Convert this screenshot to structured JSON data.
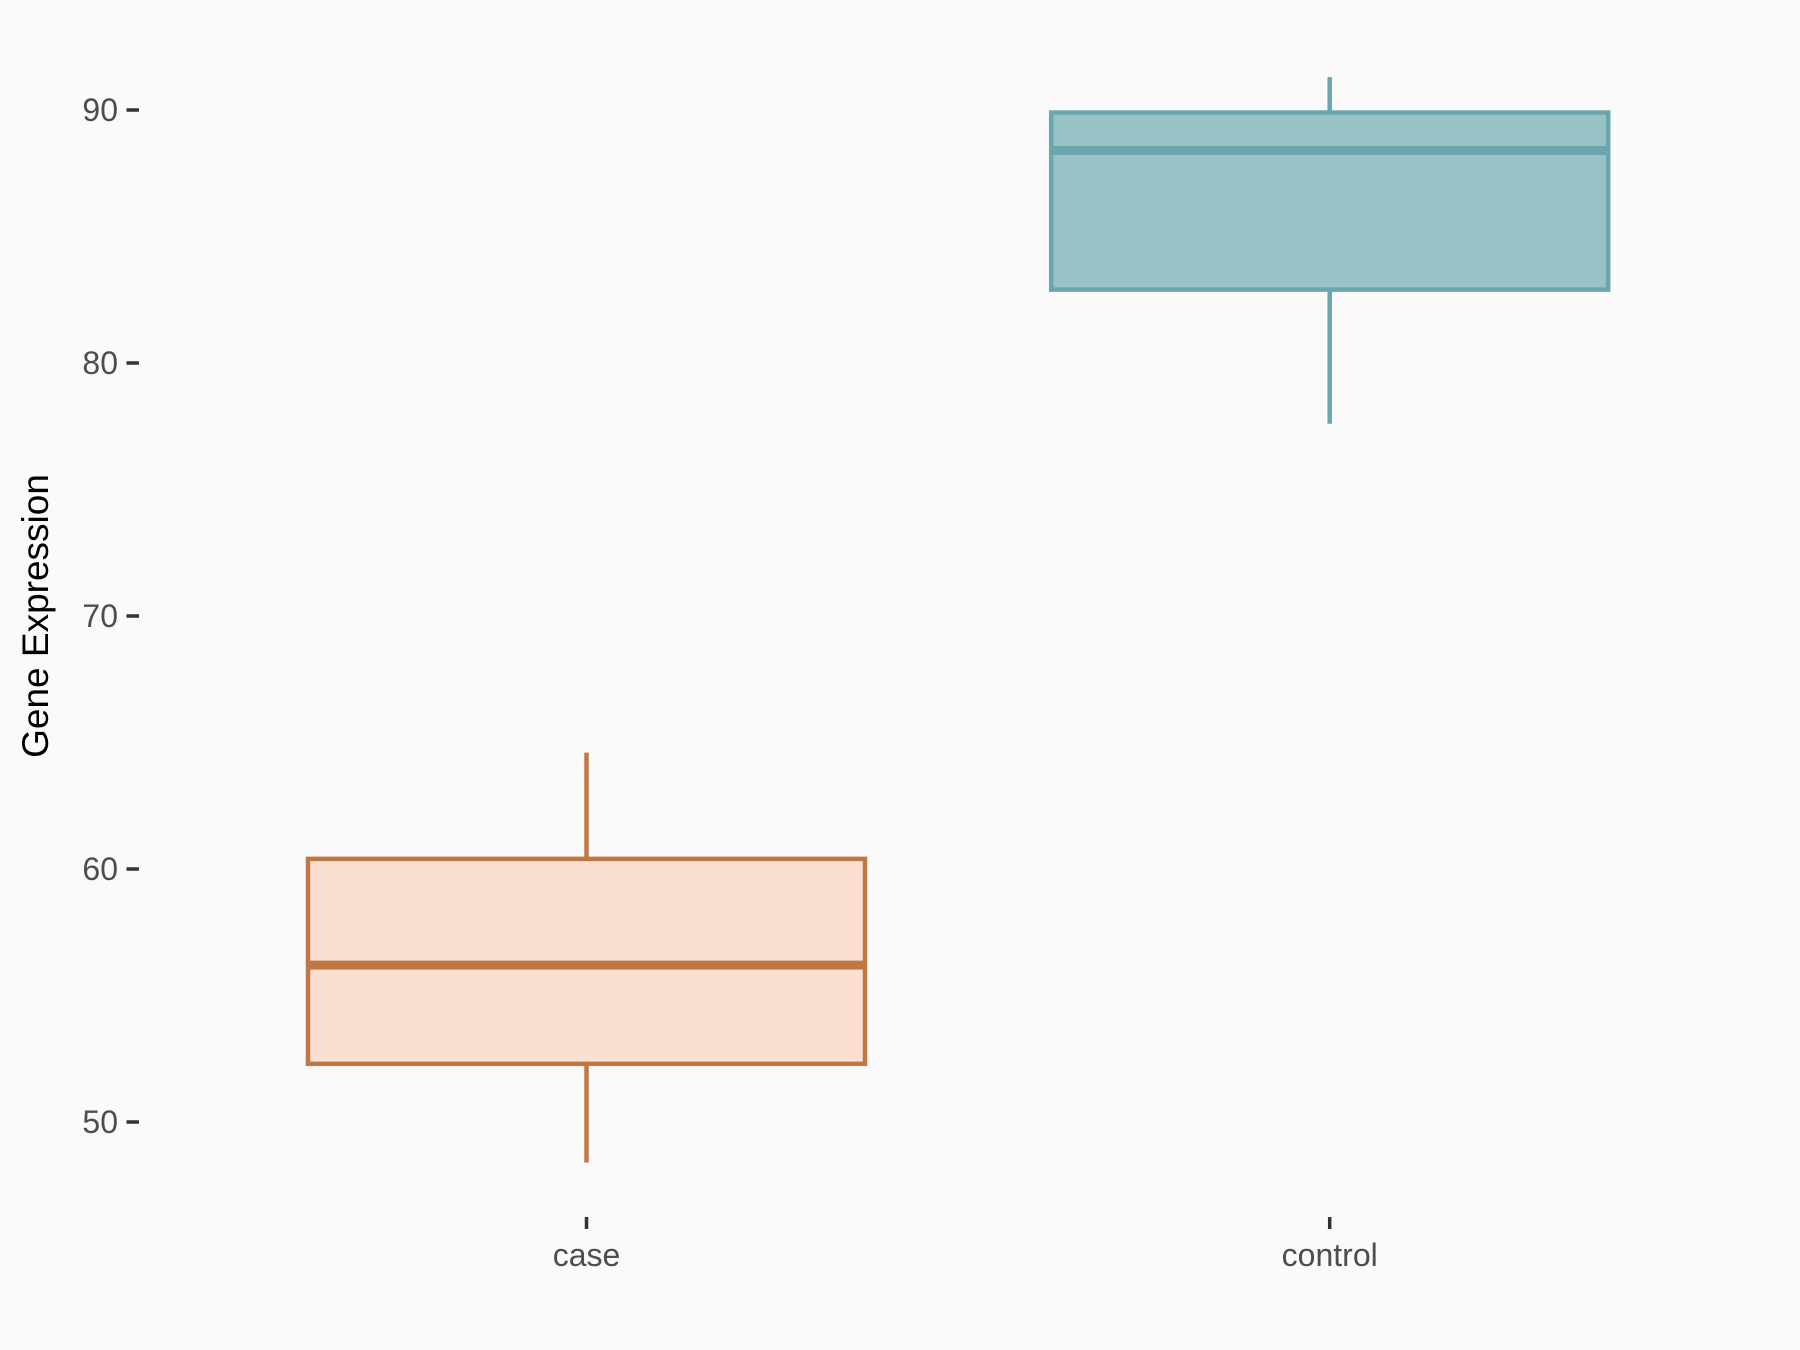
{
  "figure": {
    "background": "#FAFAFA",
    "tick_label_color": "#4D4D4D",
    "tick_mark_color": "#333333",
    "axis_title_color": "#000000"
  },
  "chart_data": {
    "type": "boxplot",
    "title": "",
    "xlabel": "",
    "ylabel": "Gene Expression",
    "categories": [
      "case",
      "control"
    ],
    "y_ticks": [
      90,
      80,
      70,
      60,
      50
    ],
    "ylim": [
      46.4,
      92.6
    ],
    "grid": "off",
    "legend": "none",
    "series": [
      {
        "name": "case",
        "lower_whisker": 48.4,
        "q1": 52.3,
        "median": 56.2,
        "q3": 60.4,
        "upper_whisker": 64.6,
        "fill": "#FCDFD3",
        "stroke": "#BF7845"
      },
      {
        "name": "control",
        "lower_whisker": 77.6,
        "q1": 82.9,
        "median": 88.4,
        "q3": 89.9,
        "upper_whisker": 91.3,
        "fill": "#99C2C7",
        "stroke": "#6AA6AD"
      }
    ]
  }
}
